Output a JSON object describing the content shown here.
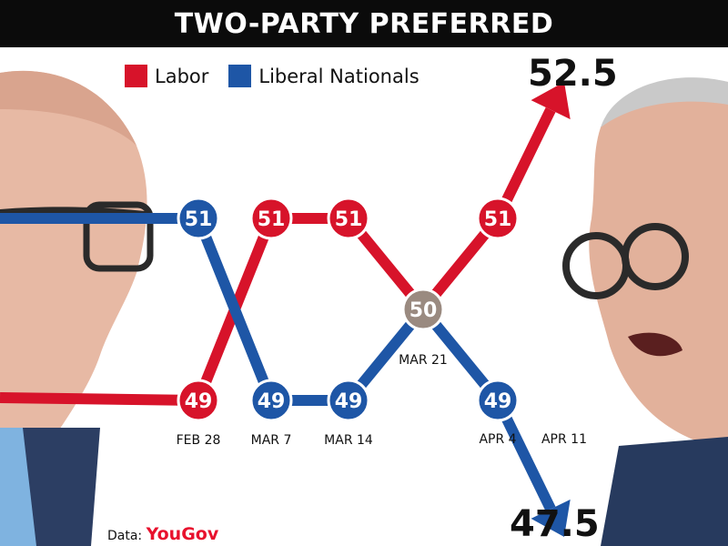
{
  "header": {
    "title": "TWO-PARTY PREFERRED"
  },
  "legend": [
    {
      "label": "Labor",
      "color": "#d7132a"
    },
    {
      "label": "Liberal Nationals",
      "color": "#1e56a6"
    }
  ],
  "colors": {
    "labor": "#d7132a",
    "coalition": "#1e56a6",
    "tie": "#9a8a80"
  },
  "chart_data": {
    "type": "line",
    "title": "TWO-PARTY PREFERRED",
    "x": [
      "FEB 28",
      "MAR 7",
      "MAR 14",
      "MAR 21",
      "APR 4",
      "APR 11"
    ],
    "series": [
      {
        "name": "Labor",
        "values": [
          49,
          51,
          51,
          50,
          51,
          52.5
        ]
      },
      {
        "name": "Liberal Nationals",
        "values": [
          51,
          49,
          49,
          50,
          49,
          47.5
        ]
      }
    ],
    "data_labels": {
      "labor": [
        "49",
        "51",
        "51",
        "50",
        "51"
      ],
      "coalition": [
        "51",
        "49",
        "49",
        "50",
        "49"
      ]
    },
    "final_labels": {
      "labor": "52.5",
      "coalition": "47.5"
    },
    "legend_position": "top-left",
    "grid": false
  },
  "credit": {
    "prefix": "Data:",
    "source": "YouGov"
  }
}
